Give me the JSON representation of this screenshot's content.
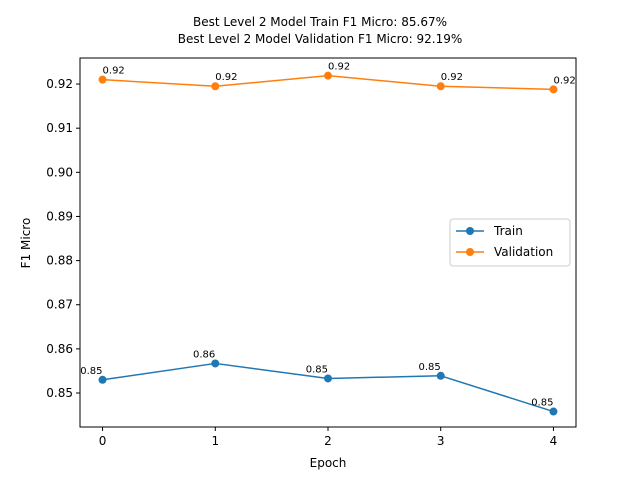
{
  "chart_data": {
    "type": "line",
    "title_line1": "Best Level 2 Model Train F1 Micro: 85.67%",
    "title_line2": "Best Level 2 Model Validation F1 Micro: 92.19%",
    "xlabel": "Epoch",
    "ylabel": "F1 Micro",
    "x": [
      0,
      1,
      2,
      3,
      4
    ],
    "xlim": [
      -0.2,
      4.2
    ],
    "ylim": [
      0.8423,
      0.9259
    ],
    "x_ticks": [
      0,
      1,
      2,
      3,
      4
    ],
    "x_tick_labels": [
      "0",
      "1",
      "2",
      "3",
      "4"
    ],
    "y_ticks": [
      0.85,
      0.86,
      0.87,
      0.88,
      0.89,
      0.9,
      0.91,
      0.92
    ],
    "y_tick_labels": [
      "0.85",
      "0.86",
      "0.87",
      "0.88",
      "0.89",
      "0.90",
      "0.91",
      "0.92"
    ],
    "grid": false,
    "legend_position": "center-right",
    "series": [
      {
        "name": "Train",
        "color": "#1f77b4",
        "values": [
          0.853,
          0.8567,
          0.8533,
          0.8539,
          0.8458
        ],
        "labels": [
          "0.85",
          "0.86",
          "0.85",
          "0.85",
          "0.85"
        ]
      },
      {
        "name": "Validation",
        "color": "#ff7f0e",
        "values": [
          0.921,
          0.9195,
          0.9219,
          0.9195,
          0.9188
        ],
        "labels": [
          "0.92",
          "0.92",
          "0.92",
          "0.92",
          "0.92"
        ]
      }
    ]
  }
}
